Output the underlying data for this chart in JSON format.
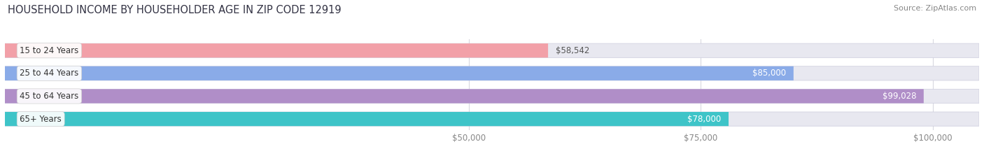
{
  "title": "HOUSEHOLD INCOME BY HOUSEHOLDER AGE IN ZIP CODE 12919",
  "source": "Source: ZipAtlas.com",
  "categories": [
    "15 to 24 Years",
    "25 to 44 Years",
    "45 to 64 Years",
    "65+ Years"
  ],
  "values": [
    58542,
    85000,
    99028,
    78000
  ],
  "bar_colors": [
    "#f2a0a8",
    "#8aabe8",
    "#b08ec8",
    "#3ec4c8"
  ],
  "bar_bg_color": "#e8e8f0",
  "value_labels": [
    "$58,542",
    "$85,000",
    "$99,028",
    "$78,000"
  ],
  "value_label_colors": [
    "#555555",
    "#ffffff",
    "#ffffff",
    "#555555"
  ],
  "x_ticks": [
    50000,
    75000,
    100000
  ],
  "x_tick_labels": [
    "$50,000",
    "$75,000",
    "$100,000"
  ],
  "xmin": 0,
  "xmax": 105000,
  "bar_height": 0.62,
  "title_fontsize": 10.5,
  "label_fontsize": 8.5,
  "value_fontsize": 8.5,
  "tick_fontsize": 8.5,
  "source_fontsize": 8,
  "bg_color": "#ffffff",
  "grid_color": "#d8d8e0",
  "tick_color": "#888888"
}
